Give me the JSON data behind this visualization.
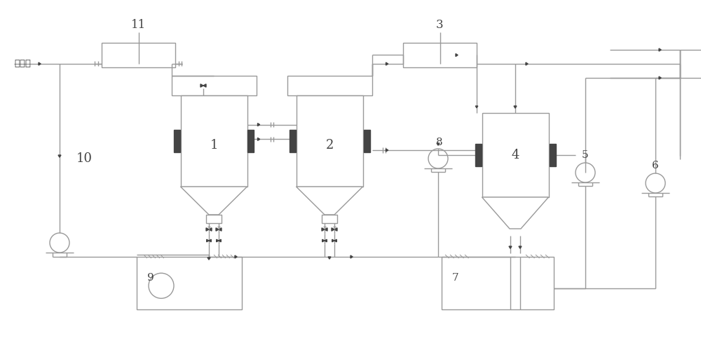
{
  "bg_color": "#ffffff",
  "lc": "#999999",
  "dc": "#444444",
  "lw": 1.0,
  "labels": {
    "crude_brine": "粗盐水",
    "n1": "1",
    "n2": "2",
    "n3": "3",
    "n4": "4",
    "n5": "5",
    "n6": "6",
    "n7": "7",
    "n8": "8",
    "n9": "9",
    "n10": "10",
    "n11": "11"
  },
  "xlim": [
    0,
    100
  ],
  "ylim": [
    0,
    48.6
  ]
}
